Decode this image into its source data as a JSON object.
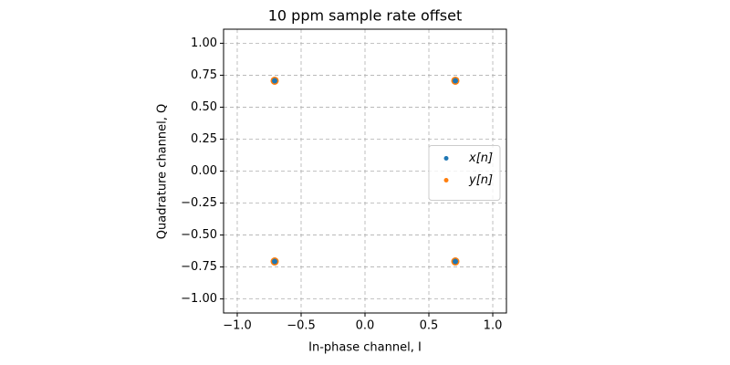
{
  "chart_data": {
    "type": "scatter",
    "title": "10 ppm sample rate offset",
    "xlabel": "In-phase channel, I",
    "ylabel": "Quadrature channel, Q",
    "xlim": [
      -1.107,
      1.107
    ],
    "ylim": [
      -1.11,
      1.11
    ],
    "xticks": [
      {
        "value": -1.0,
        "label": "−1.0"
      },
      {
        "value": -0.5,
        "label": "−0.5"
      },
      {
        "value": 0,
        "label": "0.0"
      },
      0.5,
      {
        "value": 1.0,
        "label": "1.0"
      }
    ],
    "yticks": [
      {
        "value": -1.0,
        "label": "−1.00"
      },
      {
        "value": -0.75,
        "label": "−0.75"
      },
      {
        "value": -0.5,
        "label": "−0.50"
      },
      {
        "value": -0.25,
        "label": "−0.25"
      },
      {
        "value": 0,
        "label": "0.00"
      },
      0.25,
      {
        "value": 0.5,
        "label": "0.50"
      },
      0.75,
      {
        "value": 1.0,
        "label": "1.00"
      }
    ],
    "grid": true,
    "legend": "center right",
    "series": [
      {
        "name": "x[n]",
        "color": "#1f77b4",
        "x": [
          0.707,
          -0.707,
          -0.707,
          0.707
        ],
        "values": [
          0.707,
          0.707,
          -0.707,
          -0.707
        ]
      },
      {
        "name": "y[n]",
        "color": "#ff7f0e",
        "x": [
          0.707,
          -0.707,
          -0.707,
          0.707
        ],
        "values": [
          0.707,
          0.707,
          -0.707,
          -0.707
        ]
      }
    ]
  }
}
